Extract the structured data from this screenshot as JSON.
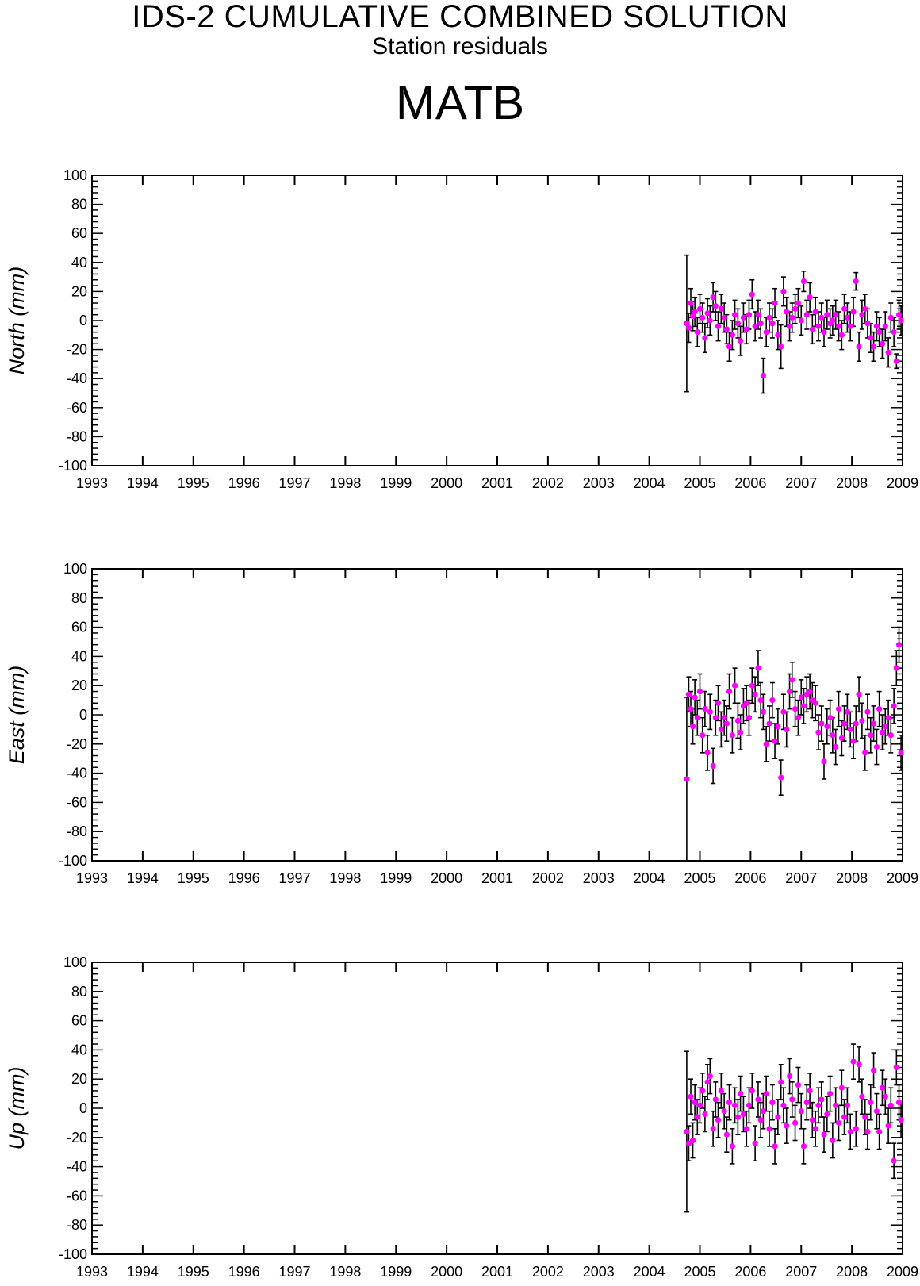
{
  "header": {
    "title": "IDS-2 CUMULATIVE COMBINED SOLUTION",
    "subtitle": "Station residuals",
    "station": "MATB"
  },
  "colors": {
    "point": "#ff00ff",
    "errorbar": "#000000",
    "axis": "#000000"
  },
  "chart_data": [
    {
      "type": "scatter",
      "ylabel": "North (mm)",
      "xlim": [
        1993,
        2009
      ],
      "ylim": [
        -100,
        100
      ],
      "x_ticks": [
        1993,
        1994,
        1995,
        1996,
        1997,
        1998,
        1999,
        2000,
        2001,
        2002,
        2003,
        2004,
        2005,
        2006,
        2007,
        2008,
        2009
      ],
      "y_ticks": [
        100,
        80,
        60,
        40,
        20,
        0,
        -20,
        -40,
        -60,
        -80,
        -100
      ],
      "error_bars": true,
      "series": [
        {
          "x": [
            2004.74,
            2004.78,
            2004.82,
            2004.86,
            2004.9,
            2004.95,
            2005.0,
            2005.05,
            2005.1,
            2005.15,
            2005.2,
            2005.26,
            2005.31,
            2005.36,
            2005.42,
            2005.48,
            2005.53,
            2005.58,
            2005.64,
            2005.69,
            2005.75,
            2005.8,
            2005.86,
            2005.92,
            2005.97,
            2006.03,
            2006.09,
            2006.15,
            2006.2,
            2006.25,
            2006.31,
            2006.37,
            2006.43,
            2006.48,
            2006.54,
            2006.6,
            2006.65,
            2006.71,
            2006.77,
            2006.82,
            2006.88,
            2006.94,
            2007.0,
            2007.05,
            2007.11,
            2007.17,
            2007.22,
            2007.28,
            2007.34,
            2007.4,
            2007.45,
            2007.51,
            2007.57,
            2007.62,
            2007.68,
            2007.74,
            2007.8,
            2007.85,
            2007.91,
            2007.97,
            2008.03,
            2008.08,
            2008.14,
            2008.2,
            2008.26,
            2008.31,
            2008.37,
            2008.43,
            2008.49,
            2008.54,
            2008.6,
            2008.66,
            2008.72,
            2008.77,
            2008.83,
            2008.88,
            2008.93,
            2008.97
          ],
          "y": [
            -2,
            -5,
            12,
            3,
            6,
            -8,
            8,
            2,
            -12,
            5,
            0,
            16,
            10,
            -4,
            8,
            2,
            -6,
            -18,
            -10,
            4,
            -2,
            -14,
            2,
            -6,
            4,
            18,
            -4,
            4,
            -2,
            -38,
            -8,
            2,
            -2,
            12,
            -10,
            -18,
            20,
            6,
            -4,
            2,
            8,
            12,
            0,
            27,
            4,
            16,
            -6,
            6,
            -4,
            2,
            -8,
            4,
            -2,
            0,
            4,
            -4,
            -10,
            8,
            2,
            -4,
            6,
            27,
            -18,
            4,
            8,
            -2,
            -12,
            -18,
            -4,
            -8,
            -16,
            -4,
            -22,
            2,
            -8,
            -28,
            4,
            0
          ],
          "yerr": [
            47,
            10,
            10,
            10,
            10,
            10,
            10,
            10,
            10,
            10,
            10,
            10,
            10,
            10,
            10,
            10,
            10,
            10,
            10,
            10,
            10,
            10,
            10,
            10,
            10,
            10,
            10,
            10,
            10,
            12,
            10,
            10,
            10,
            10,
            10,
            15,
            10,
            10,
            10,
            10,
            10,
            10,
            10,
            7,
            10,
            10,
            10,
            10,
            10,
            10,
            10,
            10,
            10,
            10,
            10,
            10,
            10,
            10,
            10,
            10,
            10,
            6,
            10,
            10,
            10,
            10,
            10,
            10,
            10,
            10,
            10,
            10,
            10,
            10,
            10,
            5,
            10,
            10
          ]
        }
      ]
    },
    {
      "type": "scatter",
      "ylabel": "East (mm)",
      "xlim": [
        1993,
        2009
      ],
      "ylim": [
        -100,
        100
      ],
      "x_ticks": [
        1993,
        1994,
        1995,
        1996,
        1997,
        1998,
        1999,
        2000,
        2001,
        2002,
        2003,
        2004,
        2005,
        2006,
        2007,
        2008,
        2009
      ],
      "y_ticks": [
        100,
        80,
        60,
        40,
        20,
        0,
        -20,
        -40,
        -60,
        -80,
        -100
      ],
      "error_bars": true,
      "series": [
        {
          "x": [
            2004.74,
            2004.78,
            2004.82,
            2004.86,
            2004.9,
            2004.95,
            2005.0,
            2005.05,
            2005.1,
            2005.15,
            2005.2,
            2005.26,
            2005.31,
            2005.36,
            2005.42,
            2005.48,
            2005.53,
            2005.58,
            2005.64,
            2005.69,
            2005.75,
            2005.8,
            2005.86,
            2005.92,
            2005.97,
            2006.03,
            2006.09,
            2006.15,
            2006.2,
            2006.25,
            2006.31,
            2006.37,
            2006.43,
            2006.48,
            2006.54,
            2006.6,
            2006.65,
            2006.71,
            2006.77,
            2006.82,
            2006.88,
            2006.94,
            2007.0,
            2007.05,
            2007.11,
            2007.17,
            2007.22,
            2007.28,
            2007.34,
            2007.4,
            2007.45,
            2007.51,
            2007.57,
            2007.62,
            2007.68,
            2007.74,
            2007.8,
            2007.85,
            2007.91,
            2007.97,
            2008.03,
            2008.08,
            2008.14,
            2008.2,
            2008.26,
            2008.31,
            2008.37,
            2008.43,
            2008.49,
            2008.54,
            2008.6,
            2008.66,
            2008.72,
            2008.77,
            2008.83,
            2008.88,
            2008.93,
            2008.97
          ],
          "y": [
            -44,
            14,
            4,
            -8,
            12,
            -2,
            16,
            -14,
            4,
            -26,
            2,
            -35,
            -2,
            8,
            -10,
            -2,
            -6,
            16,
            -14,
            20,
            -4,
            -12,
            6,
            8,
            -2,
            20,
            14,
            32,
            10,
            2,
            -20,
            -6,
            10,
            -18,
            -8,
            -43,
            2,
            -10,
            16,
            24,
            4,
            -2,
            12,
            6,
            14,
            16,
            10,
            8,
            -12,
            -6,
            -32,
            -8,
            -2,
            -14,
            -22,
            4,
            -16,
            -6,
            2,
            -10,
            -18,
            -6,
            14,
            -4,
            -26,
            2,
            -14,
            -6,
            -22,
            4,
            -12,
            -8,
            -2,
            -14,
            6,
            32,
            48,
            -26
          ]
        }
      ],
      "yerr_typical": 12
    },
    {
      "type": "scatter",
      "ylabel": "Up (mm)",
      "xlim": [
        1993,
        2009
      ],
      "ylim": [
        -100,
        100
      ],
      "x_ticks": [
        1993,
        1994,
        1995,
        1996,
        1997,
        1998,
        1999,
        2000,
        2001,
        2002,
        2003,
        2004,
        2005,
        2006,
        2007,
        2008,
        2009
      ],
      "y_ticks": [
        100,
        80,
        60,
        40,
        20,
        0,
        -20,
        -40,
        -60,
        -80,
        -100
      ],
      "error_bars": true,
      "series": [
        {
          "x": [
            2004.74,
            2004.78,
            2004.82,
            2004.86,
            2004.9,
            2004.95,
            2005.0,
            2005.05,
            2005.1,
            2005.15,
            2005.2,
            2005.26,
            2005.31,
            2005.36,
            2005.42,
            2005.48,
            2005.53,
            2005.58,
            2005.64,
            2005.69,
            2005.75,
            2005.8,
            2005.86,
            2005.92,
            2005.97,
            2006.03,
            2006.09,
            2006.15,
            2006.2,
            2006.25,
            2006.31,
            2006.37,
            2006.43,
            2006.48,
            2006.54,
            2006.6,
            2006.65,
            2006.71,
            2006.77,
            2006.82,
            2006.88,
            2006.94,
            2007.0,
            2007.05,
            2007.11,
            2007.17,
            2007.22,
            2007.28,
            2007.34,
            2007.4,
            2007.45,
            2007.51,
            2007.57,
            2007.62,
            2007.68,
            2007.74,
            2007.8,
            2007.85,
            2007.91,
            2007.97,
            2008.03,
            2008.08,
            2008.14,
            2008.2,
            2008.26,
            2008.31,
            2008.37,
            2008.43,
            2008.49,
            2008.54,
            2008.6,
            2008.66,
            2008.72,
            2008.77,
            2008.83,
            2008.88,
            2008.93,
            2008.97
          ],
          "y": [
            -16,
            -24,
            8,
            -22,
            4,
            -6,
            2,
            12,
            -4,
            18,
            22,
            -14,
            6,
            -8,
            12,
            -2,
            -18,
            4,
            -26,
            2,
            -6,
            10,
            -4,
            -14,
            2,
            12,
            -24,
            6,
            -8,
            -2,
            10,
            -14,
            4,
            -26,
            -6,
            18,
            2,
            -12,
            22,
            6,
            -10,
            16,
            -2,
            -26,
            4,
            12,
            -8,
            -14,
            2,
            6,
            -18,
            -4,
            10,
            -22,
            2,
            -10,
            14,
            -6,
            2,
            -16,
            32,
            -14,
            30,
            8,
            -6,
            -16,
            4,
            26,
            -2,
            -16,
            14,
            8,
            -12,
            2,
            -36,
            28,
            4,
            -8
          ],
          "yerr_first": 55
        }
      ],
      "yerr_typical": 12
    }
  ]
}
